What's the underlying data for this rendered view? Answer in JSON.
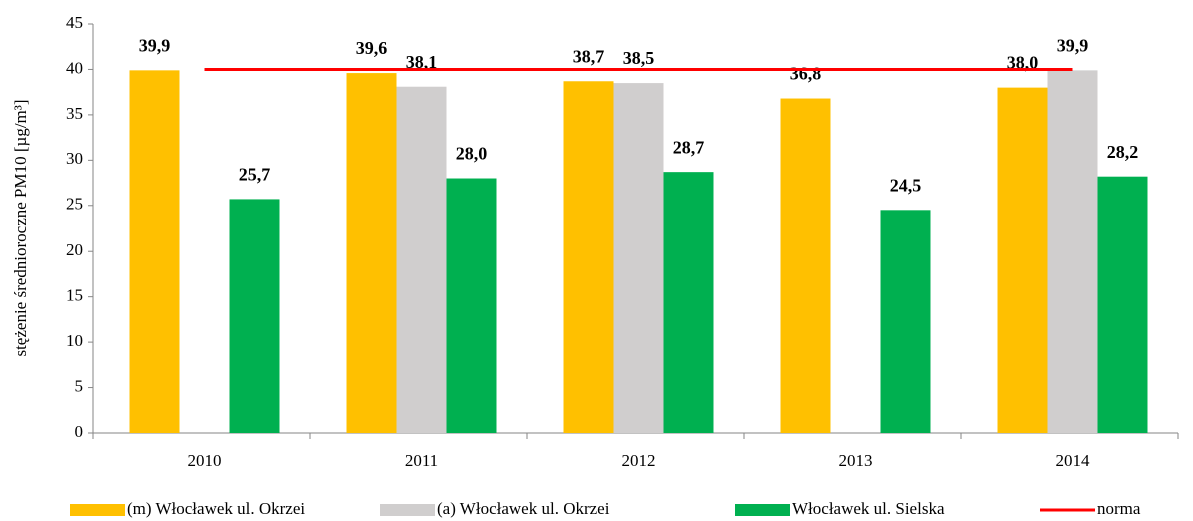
{
  "chart_data": {
    "type": "bar",
    "y_label": "stężenie średnioroczne PM10 [µg/m³]",
    "categories": [
      "2010",
      "2011",
      "2012",
      "2013",
      "2014"
    ],
    "series": [
      {
        "name": "(m) Włocławek ul. Okrzei",
        "color": "#ffc000",
        "values": [
          39.9,
          39.6,
          38.7,
          36.8,
          38.0
        ],
        "value_labels": [
          "39,9",
          "39,6",
          "38,7",
          "36,8",
          "38,0"
        ]
      },
      {
        "name": "(a) Włocławek ul. Okrzei",
        "color": "#d0cece",
        "values": [
          null,
          38.1,
          38.5,
          null,
          39.9
        ],
        "value_labels": [
          null,
          "38,1",
          "38,5",
          null,
          "39,9"
        ]
      },
      {
        "name": "Włocławek ul. Sielska",
        "color": "#00b050",
        "values": [
          25.7,
          28.0,
          28.7,
          24.5,
          28.2
        ],
        "value_labels": [
          "25,7",
          "28,0",
          "28,7",
          "24,5",
          "28,2"
        ]
      },
      {
        "name": "norma",
        "type": "line",
        "color": "#ff0000",
        "values": [
          40,
          40,
          40,
          40,
          40
        ]
      }
    ],
    "ylim": [
      0,
      45
    ],
    "yticks": [
      0,
      5,
      10,
      15,
      20,
      25,
      30,
      35,
      40,
      45
    ],
    "grid": false,
    "legend": "bottom"
  }
}
